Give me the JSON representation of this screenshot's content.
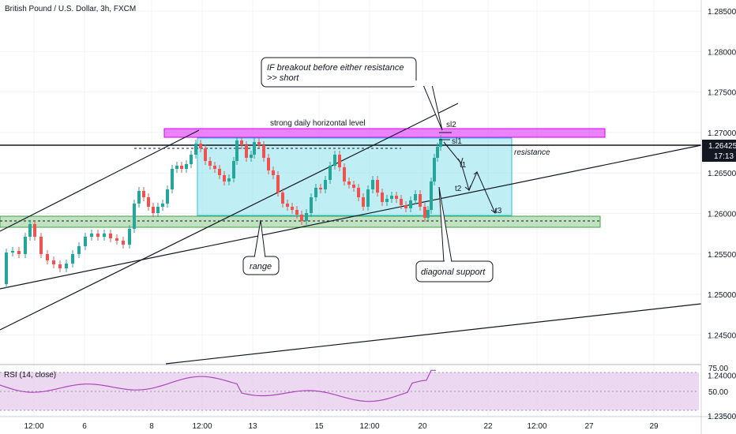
{
  "title": "British Pound / U.S. Dollar, 3h, FXCM",
  "colors": {
    "up": "#26a69a",
    "down": "#ef5350",
    "resistance_zone": "#e040fb",
    "range_box": "#80deea",
    "support_zone": "#a5d6a7",
    "rsi_band": "#e1bee7",
    "rsi_line": "#ab47bc",
    "price_tag": "#131722"
  },
  "price_axis": {
    "ticks": [
      "1.28500",
      "1.28000",
      "1.27500",
      "1.27000",
      "1.26500",
      "1.26000",
      "1.25500",
      "1.25000",
      "1.24500",
      "1.24000",
      "1.23500"
    ],
    "current_price": "1.26425",
    "countdown": "17:13"
  },
  "time_axis": {
    "ticks": [
      "12:00",
      "6",
      "8",
      "12:00",
      "13",
      "15",
      "12:00",
      "20",
      "22",
      "12:00",
      "27",
      "29"
    ]
  },
  "rsi": {
    "label": "RSI (14, close)",
    "ticks": [
      "75.00",
      "50.00"
    ]
  },
  "annotations": {
    "callout_line1": "IF breakout before either resistance",
    "callout_line2": ">> short",
    "strong_level": "strong daily horizontal level",
    "resistance": "resistance",
    "range": "range",
    "diagonal_support": "diagonal support",
    "sl1": "sl1",
    "sl2": "sl2",
    "t1": "t1",
    "t2": "t2",
    "t3": "t3"
  }
}
